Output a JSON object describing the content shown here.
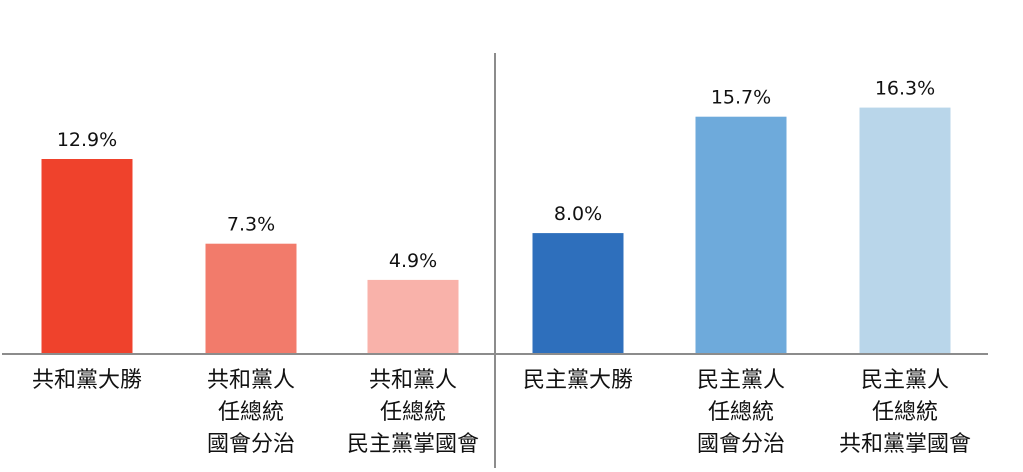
{
  "chart_data": {
    "type": "bar",
    "title": "",
    "xlabel": "",
    "ylabel": "",
    "ylim": [
      0,
      20
    ],
    "grid": false,
    "legend": "none",
    "categories": [
      [
        "共和黨大勝"
      ],
      [
        "共和黨人",
        "任總統",
        "國會分治"
      ],
      [
        "共和黨人",
        "任總統",
        "民主黨掌國會"
      ],
      [
        "民主黨大勝"
      ],
      [
        "民主黨人",
        "任總統",
        "國會分治"
      ],
      [
        "民主黨人",
        "任總統",
        "共和黨掌國會"
      ]
    ],
    "values": [
      12.9,
      7.3,
      4.9,
      8.0,
      15.7,
      16.3
    ],
    "value_labels": [
      "12.9%",
      "7.3%",
      "4.9%",
      "8.0%",
      "15.7%",
      "16.3%"
    ],
    "colors": [
      "#ef422c",
      "#f27b6b",
      "#f9b2aa",
      "#2e6fbc",
      "#6eaadb",
      "#b9d6ea"
    ],
    "divider_after_index": 2
  }
}
